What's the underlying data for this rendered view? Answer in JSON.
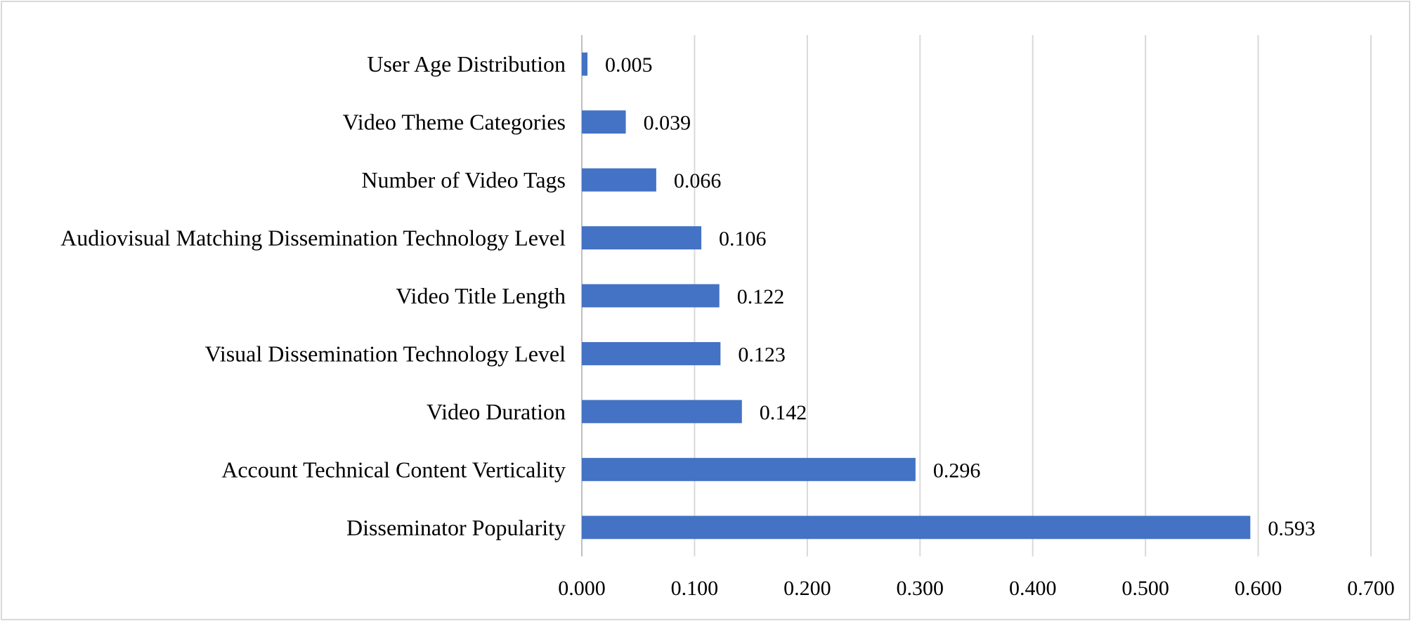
{
  "chart_data": {
    "type": "bar",
    "orientation": "horizontal",
    "categories": [
      "User Age Distribution",
      "Video Theme Categories",
      "Number of Video Tags",
      "Audiovisual Matching Dissemination Technology Level",
      "Video Title Length",
      "Visual Dissemination Technology Level",
      "Video Duration",
      "Account Technical Content Verticality",
      "Disseminator Popularity"
    ],
    "values": [
      0.005,
      0.039,
      0.066,
      0.106,
      0.122,
      0.123,
      0.142,
      0.296,
      0.593
    ],
    "value_labels": [
      "0.005",
      "0.039",
      "0.066",
      "0.106",
      "0.122",
      "0.123",
      "0.142",
      "0.296",
      "0.593"
    ],
    "x_ticks": [
      0.0,
      0.1,
      0.2,
      0.3,
      0.4,
      0.5,
      0.6,
      0.7
    ],
    "x_tick_labels": [
      "0.000",
      "0.100",
      "0.200",
      "0.300",
      "0.400",
      "0.500",
      "0.600",
      "0.700"
    ],
    "xlim": [
      0,
      0.7
    ],
    "title": "",
    "xlabel": "",
    "ylabel": "",
    "grid": "vertical",
    "legend": "none",
    "colors": {
      "bar": "#4472C4",
      "grid": "#D9D9D9",
      "border": "#D9D9D9"
    }
  }
}
